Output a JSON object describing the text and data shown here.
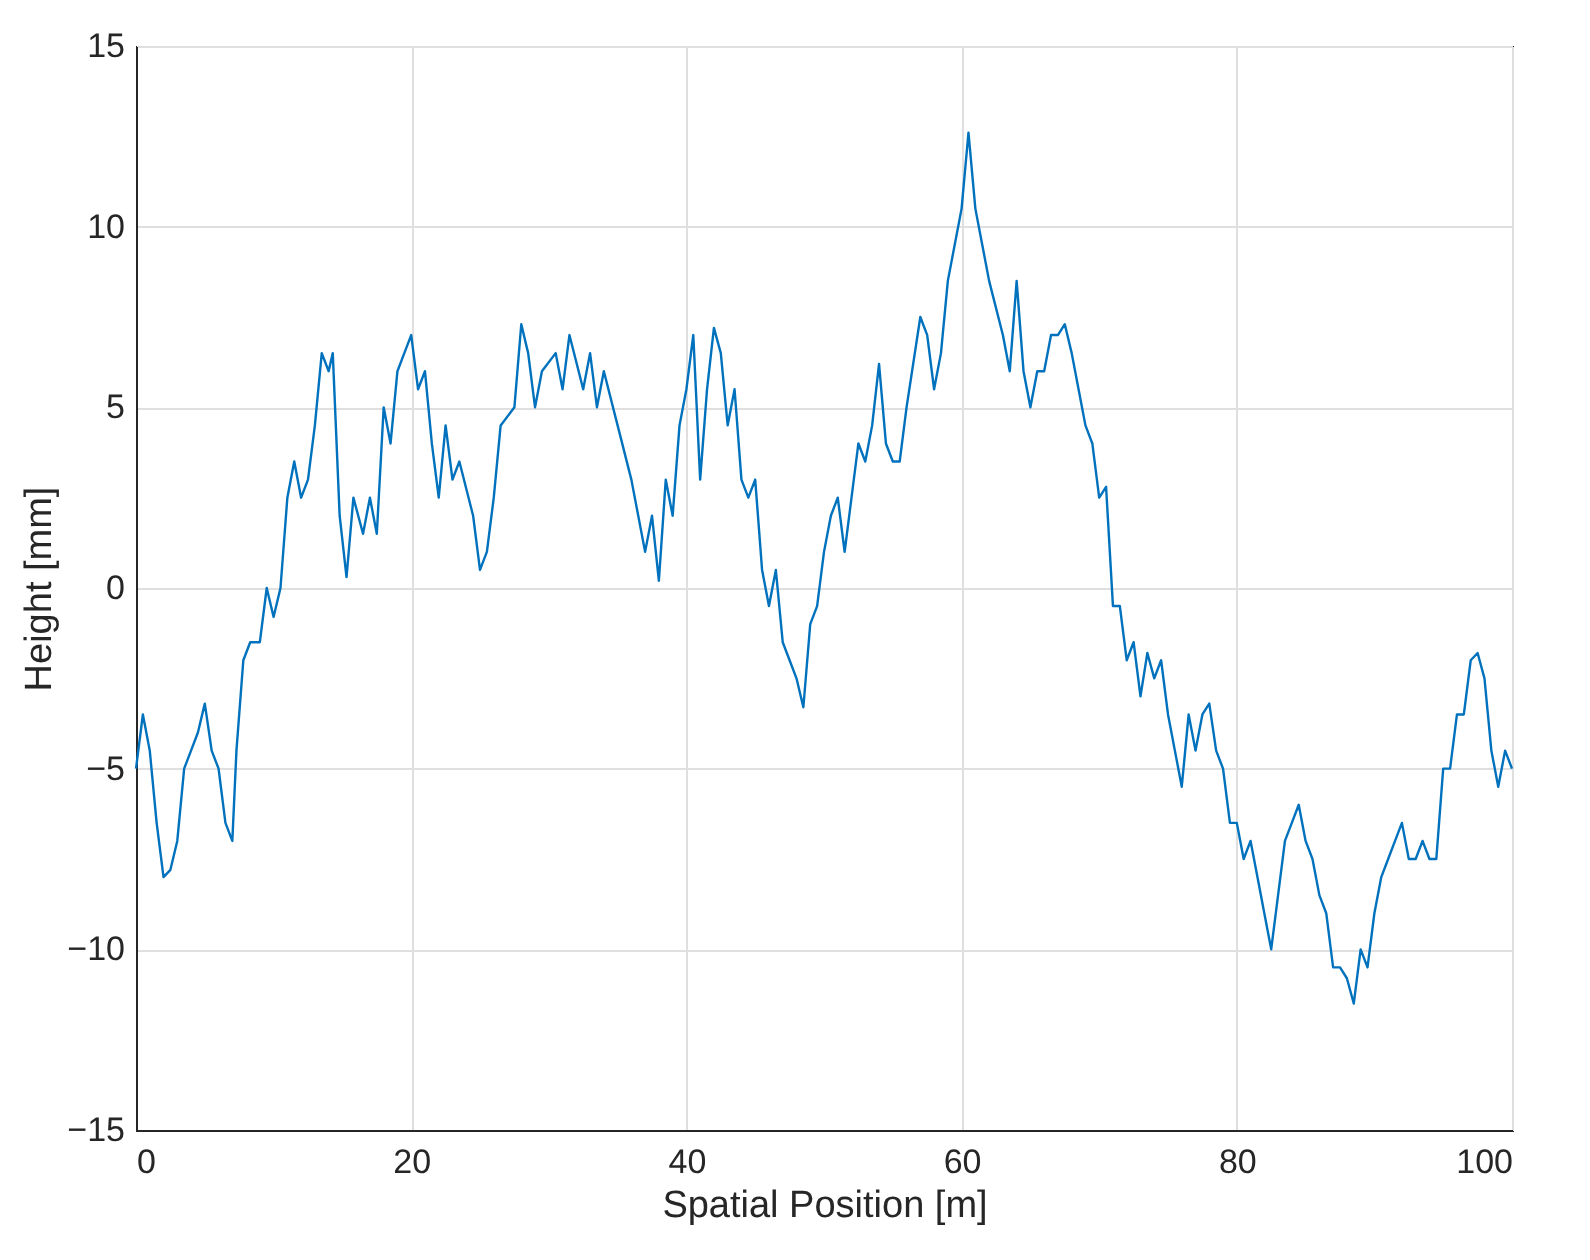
{
  "chart_data": {
    "type": "line",
    "xlabel": "Spatial Position [m]",
    "ylabel": "Height [mm]",
    "x": [
      0,
      0.5,
      1,
      1.5,
      2,
      2.5,
      3,
      3.5,
      4,
      4.5,
      5,
      5.5,
      6,
      6.5,
      7,
      7.3,
      7.8,
      8.3,
      9,
      9.5,
      10,
      10.5,
      11,
      11.5,
      12,
      12.5,
      13,
      13.5,
      14,
      14.3,
      14.8,
      15.3,
      15.8,
      16.5,
      17,
      17.5,
      18,
      18.5,
      19,
      19.5,
      20,
      20.5,
      21,
      21.5,
      22,
      22.5,
      23,
      23.5,
      24.5,
      25,
      25.5,
      26,
      26.5,
      27.5,
      28,
      28.5,
      29,
      29.5,
      30.5,
      31,
      31.5,
      32.5,
      33,
      33.5,
      34,
      35,
      36,
      36.5,
      37,
      37.5,
      38,
      38.5,
      39,
      39.5,
      40,
      40.5,
      41,
      41.5,
      42,
      42.5,
      43,
      43.5,
      44,
      44.5,
      45,
      45.5,
      46,
      46.5,
      47,
      47.5,
      48,
      48.5,
      49,
      49.5,
      50,
      50.5,
      51,
      51.5,
      52,
      52.5,
      53,
      53.5,
      54,
      54.5,
      55,
      55.5,
      56,
      57,
      57.5,
      58,
      58.5,
      59,
      59.5,
      60,
      60.5,
      61,
      61.5,
      62,
      63,
      63.5,
      64,
      64.5,
      65,
      65.5,
      66,
      66.5,
      67,
      67.5,
      68,
      68.5,
      69,
      69.5,
      70,
      70.5,
      71,
      71.5,
      72,
      72.5,
      73,
      73.5,
      74,
      74.5,
      75,
      75.5,
      76,
      76.5,
      77,
      77.5,
      78,
      78.5,
      79,
      79.5,
      80,
      80.5,
      81,
      81.5,
      82,
      82.5,
      83,
      83.5,
      84,
      84.5,
      85,
      85.5,
      86,
      86.5,
      87,
      87.5,
      88,
      88.5,
      89,
      89.5,
      90,
      90.5,
      91,
      91.5,
      92,
      92.5,
      93,
      93.5,
      94,
      94.5,
      95,
      95.5,
      96,
      96.5,
      97,
      97.5,
      98,
      98.5,
      99,
      99.5,
      100
    ],
    "series": [
      {
        "color": "#0072bd",
        "values": [
          -5,
          -3.5,
          -4.5,
          -6.5,
          -8,
          -7.8,
          -7,
          -5,
          -4.5,
          -4,
          -3.2,
          -4.5,
          -5,
          -6.5,
          -7,
          -4.5,
          -2,
          -1.5,
          -1.5,
          0,
          -0.8,
          0,
          2.5,
          3.5,
          2.5,
          3,
          4.5,
          6.5,
          6,
          6.5,
          2,
          0.3,
          2.5,
          1.5,
          2.5,
          1.5,
          5,
          4,
          6,
          6.5,
          7,
          5.5,
          6,
          4,
          2.5,
          4.5,
          3,
          3.5,
          2,
          0.5,
          1,
          2.5,
          4.5,
          5,
          7.3,
          6.5,
          5,
          6,
          6.5,
          5.5,
          7,
          5.5,
          6.5,
          5,
          6,
          4.5,
          3,
          2,
          1,
          2,
          0.2,
          3,
          2,
          4.5,
          5.5,
          7,
          3,
          5.5,
          7.2,
          6.5,
          4.5,
          5.5,
          3,
          2.5,
          3,
          0.5,
          -0.5,
          0.5,
          -1.5,
          -2,
          -2.5,
          -3.3,
          -1,
          -0.5,
          1,
          2,
          2.5,
          1,
          2.5,
          4,
          3.5,
          4.5,
          6.2,
          4,
          3.5,
          3.5,
          5,
          7.5,
          7,
          5.5,
          6.5,
          8.5,
          9.5,
          10.5,
          12.6,
          10.5,
          9.5,
          8.5,
          7,
          6,
          8.5,
          6,
          5,
          6,
          6,
          7,
          7,
          7.3,
          6.5,
          5.5,
          4.5,
          4,
          2.5,
          2.8,
          -0.5,
          -0.5,
          -2,
          -1.5,
          -3,
          -1.8,
          -2.5,
          -2,
          -3.5,
          -4.5,
          -5.5,
          -3.5,
          -4.5,
          -3.5,
          -3.2,
          -4.5,
          -5,
          -6.5,
          -6.5,
          -7.5,
          -7,
          -8,
          -9,
          -10,
          -8.5,
          -7,
          -6.5,
          -6,
          -7,
          -7.5,
          -8.5,
          -9,
          -10.5,
          -10.5,
          -10.8,
          -11.5,
          -10,
          -10.5,
          -9,
          -8,
          -7.5,
          -7,
          -6.5,
          -7.5,
          -7.5,
          -7,
          -7.5,
          -7.5,
          -5,
          -5,
          -3.5,
          -3.5,
          -2,
          -1.8,
          -2.5,
          -4.5,
          -5.5,
          -4.5,
          -5
        ]
      }
    ],
    "xlim": [
      0,
      100
    ],
    "xticks": [
      0,
      20,
      40,
      60,
      80,
      100
    ],
    "ylim": [
      -15,
      15
    ],
    "yticks": [
      -15,
      -10,
      -5,
      0,
      5,
      10,
      15
    ],
    "grid": true,
    "line_style": "solid",
    "marker": "none"
  }
}
